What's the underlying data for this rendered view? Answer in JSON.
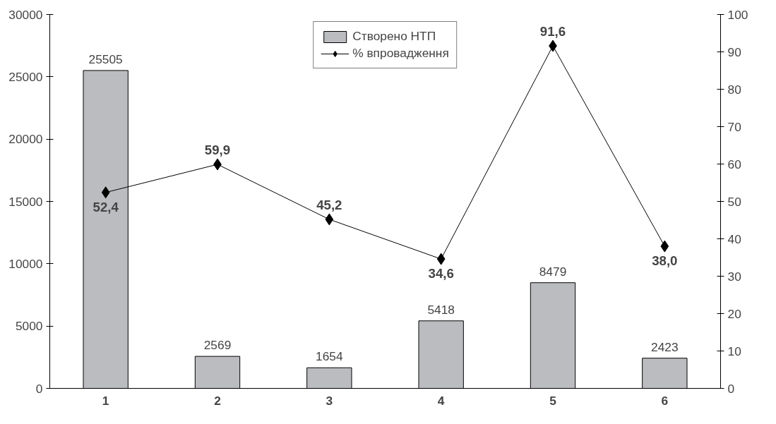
{
  "chart_data": {
    "type": "bar",
    "categories": [
      "1",
      "2",
      "3",
      "4",
      "5",
      "6"
    ],
    "series": [
      {
        "name": "Створено НТП",
        "color": "#bbbcbf",
        "values": [
          25505,
          2569,
          1654,
          5418,
          8479,
          2423
        ],
        "value_labels": [
          "25505",
          "2569",
          "1654",
          "5418",
          "8479",
          "2423"
        ]
      },
      {
        "name": "% впровадження",
        "type": "line",
        "axis": "y2",
        "color": "#000000",
        "marker": "diamond",
        "values": [
          52.4,
          59.9,
          45.2,
          34.6,
          91.6,
          38.0
        ],
        "value_labels": [
          "52,4",
          "59,9",
          "45,2",
          "34,6",
          "91,6",
          "38,0"
        ]
      }
    ],
    "ylim": [
      0,
      30000
    ],
    "yticks": [
      0,
      5000,
      10000,
      15000,
      20000,
      25000,
      30000
    ],
    "y2lim": [
      0,
      100
    ],
    "y2ticks": [
      0,
      10,
      20,
      30,
      40,
      50,
      60,
      70,
      80,
      90,
      100
    ],
    "grid": false,
    "legend": "top"
  }
}
